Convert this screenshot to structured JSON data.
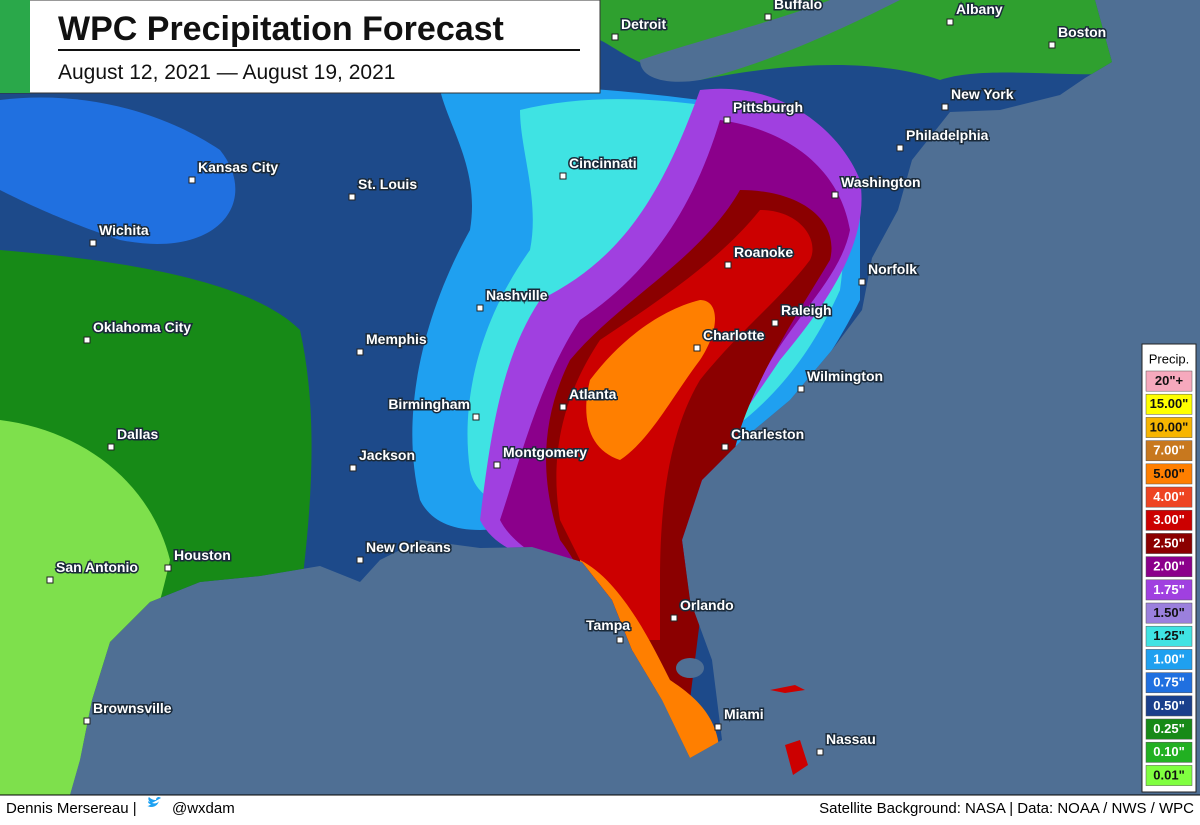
{
  "header": {
    "title": "WPC Precipitation Forecast",
    "subtitle": "August 12, 2021 — August 19, 2021"
  },
  "cities": [
    "Buffalo",
    "Albany",
    "Detroit",
    "Boston",
    "New York",
    "Pittsburgh",
    "Philadelphia",
    "Washington",
    "Cincinnati",
    "Kansas City",
    "St. Louis",
    "Wichita",
    "Roanoke",
    "Norfolk",
    "Nashville",
    "Raleigh",
    "Oklahoma City",
    "Charlotte",
    "Memphis",
    "Wilmington",
    "Atlanta",
    "Birmingham",
    "Charleston",
    "Dallas",
    "Montgomery",
    "Jackson",
    "New Orleans",
    "Houston",
    "San Antonio",
    "Orlando",
    "Tampa",
    "Brownsville",
    "Miami",
    "Nassau"
  ],
  "legend": {
    "title": "Precip.",
    "items": [
      {
        "label": "20\"+",
        "color": "#f6a9bd"
      },
      {
        "label": "15.00\"",
        "color": "#ffff00"
      },
      {
        "label": "10.00\"",
        "color": "#f7b500"
      },
      {
        "label": "7.00\"",
        "color": "#c8781e"
      },
      {
        "label": "5.00\"",
        "color": "#ff7f00"
      },
      {
        "label": "4.00\"",
        "color": "#ee4422"
      },
      {
        "label": "3.00\"",
        "color": "#cc0000"
      },
      {
        "label": "2.50\"",
        "color": "#8b0000"
      },
      {
        "label": "2.00\"",
        "color": "#8b008b"
      },
      {
        "label": "1.75\"",
        "color": "#a040e0"
      },
      {
        "label": "1.50\"",
        "color": "#9b80dd"
      },
      {
        "label": "1.25\"",
        "color": "#3fe3e3"
      },
      {
        "label": "1.00\"",
        "color": "#1fa0f0"
      },
      {
        "label": "0.75\"",
        "color": "#2070e0"
      },
      {
        "label": "0.50\"",
        "color": "#1a3f8c"
      },
      {
        "label": "0.25\"",
        "color": "#178a17"
      },
      {
        "label": "0.10\"",
        "color": "#22b022"
      },
      {
        "label": "0.01\"",
        "color": "#80ff40"
      }
    ]
  },
  "footer": {
    "author": "Dennis Mersereau |",
    "handle": "@wxdam",
    "credits": "Satellite Background: NASA | Data: NOAA / NWS / WPC"
  }
}
